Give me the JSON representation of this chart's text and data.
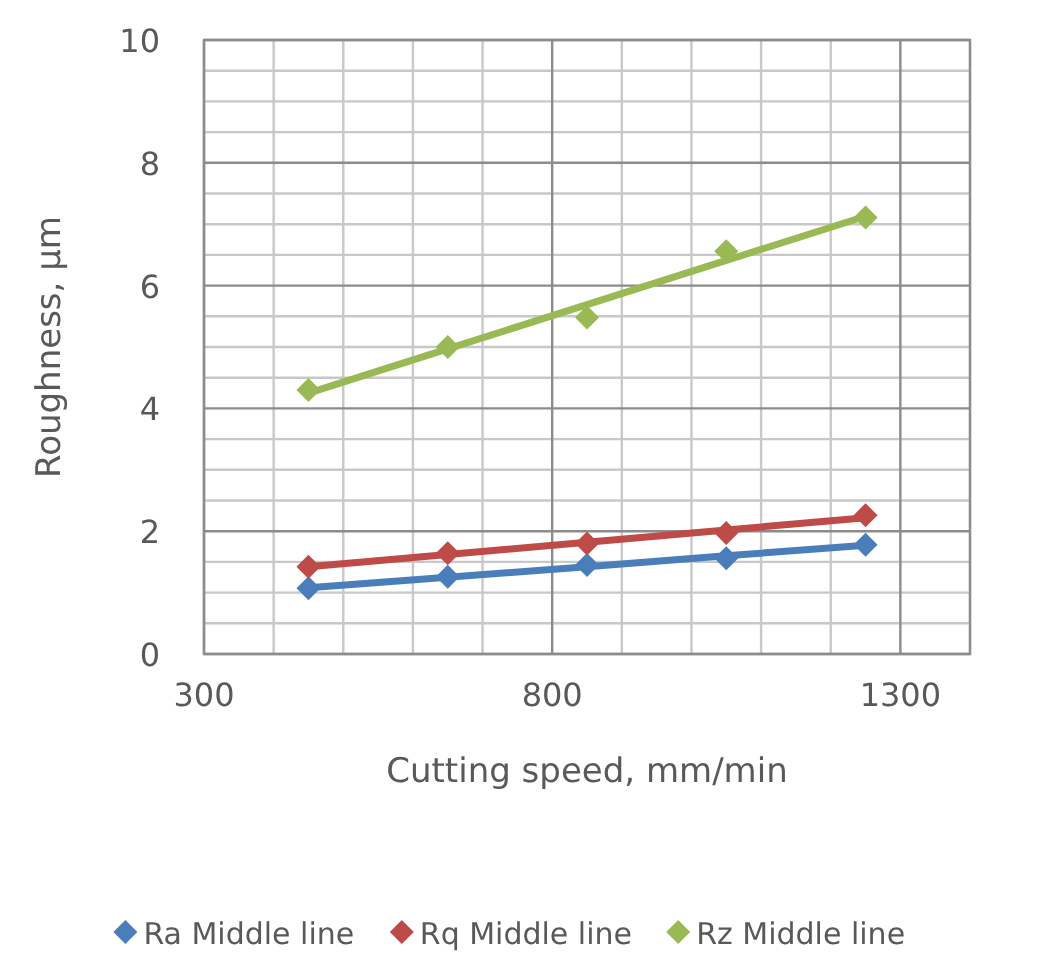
{
  "chart_data": {
    "type": "scatter",
    "xlabel": "Cutting speed, mm/min",
    "ylabel": "Roughness, µm",
    "x": [
      450,
      650,
      850,
      1050,
      1250
    ],
    "series": [
      {
        "type": "line",
        "marker": "none",
        "color": "#4a7ebb",
        "values": [
          1.08,
          1.25,
          1.42,
          1.6,
          1.77
        ]
      },
      {
        "type": "line",
        "marker": "none",
        "color": "#be4b48",
        "values": [
          1.42,
          1.62,
          1.82,
          2.02,
          2.22
        ]
      },
      {
        "type": "line",
        "marker": "none",
        "color": "#98b954",
        "values": [
          4.25,
          4.97,
          5.69,
          6.41,
          7.13
        ]
      },
      {
        "name": "Ra Middle line",
        "color": "#4a7ebb",
        "values": [
          1.07,
          1.26,
          1.45,
          1.56,
          1.78
        ]
      },
      {
        "name": "Rq Middle line",
        "color": "#be4b48",
        "values": [
          1.42,
          1.64,
          1.8,
          1.97,
          2.26
        ]
      },
      {
        "name": "Rz Middle line",
        "color": "#98b954",
        "values": [
          4.3,
          5.0,
          5.48,
          6.56,
          7.11
        ]
      }
    ],
    "xlim": [
      300,
      1400
    ],
    "xticks": [
      300,
      800,
      1300
    ],
    "ylim": [
      0,
      10
    ],
    "yticks": [
      0,
      2,
      4,
      6,
      8,
      10
    ],
    "grid": true,
    "legend": "bottom",
    "marker": "diamond",
    "line_style": "solid"
  }
}
